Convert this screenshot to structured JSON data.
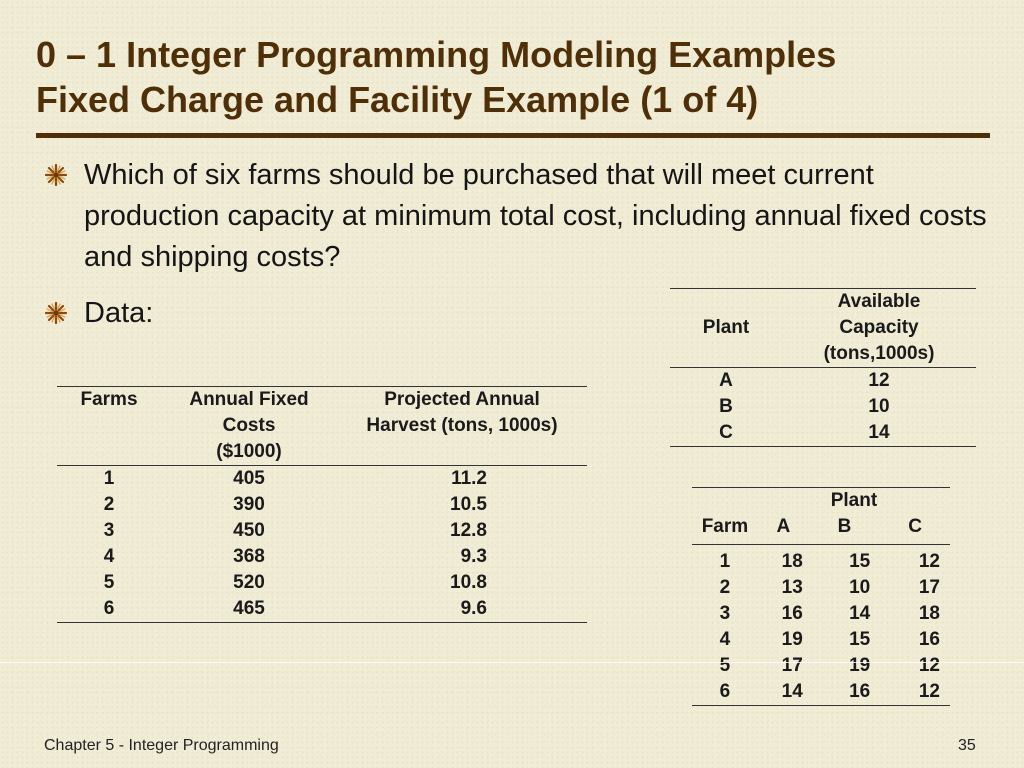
{
  "slide": {
    "title_line1": "0 – 1 Integer Programming Modeling Examples",
    "title_line2": "Fixed Charge and Facility Example (1 of 4)",
    "bullets": [
      "Which of six farms should be purchased that will meet current production capacity at minimum total cost, including annual fixed costs and shipping costs?",
      "Data:"
    ],
    "bullet_icon": "starburst-bullet-icon",
    "accent_color": "#4f2f07"
  },
  "farms_table": {
    "headers": {
      "farms": "Farms",
      "fixed_line1": "Annual Fixed",
      "fixed_line2": "Costs",
      "fixed_line3": "($1000)",
      "harvest_line1": "Projected Annual",
      "harvest_line2": "Harvest (tons, 1000s)"
    },
    "rows": [
      {
        "farm": "1",
        "fixed": "405",
        "harvest": "11.2"
      },
      {
        "farm": "2",
        "fixed": "390",
        "harvest": "10.5"
      },
      {
        "farm": "3",
        "fixed": "450",
        "harvest": "12.8"
      },
      {
        "farm": "4",
        "fixed": "368",
        "harvest": "9.3"
      },
      {
        "farm": "5",
        "fixed": "520",
        "harvest": "10.8"
      },
      {
        "farm": "6",
        "fixed": "465",
        "harvest": "9.6"
      }
    ]
  },
  "plants_table": {
    "headers": {
      "plant": "Plant",
      "cap_line1": "Available",
      "cap_line2": "Capacity",
      "cap_line3": "(tons,1000s)"
    },
    "rows": [
      {
        "plant": "A",
        "capacity": "12"
      },
      {
        "plant": "B",
        "capacity": "10"
      },
      {
        "plant": "C",
        "capacity": "14"
      }
    ]
  },
  "shipping_table": {
    "headers": {
      "group": "Plant",
      "farm": "Farm",
      "a": "A",
      "b": "B",
      "c": "C"
    },
    "rows": [
      {
        "farm": "1",
        "a": "18",
        "b": "15",
        "c": "12"
      },
      {
        "farm": "2",
        "a": "13",
        "b": "10",
        "c": "17"
      },
      {
        "farm": "3",
        "a": "16",
        "b": "14",
        "c": "18"
      },
      {
        "farm": "4",
        "a": "19",
        "b": "15",
        "c": "16"
      },
      {
        "farm": "5",
        "a": "17",
        "b": "19",
        "c": "12"
      },
      {
        "farm": "6",
        "a": "14",
        "b": "16",
        "c": "12"
      }
    ]
  },
  "footer": {
    "chapter": "Chapter 5 - Integer Programming",
    "page_number": "35"
  }
}
